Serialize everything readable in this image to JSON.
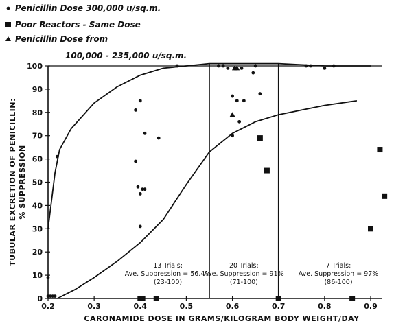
{
  "chart_data": {
    "type": "scatter",
    "legend": {
      "placement": "top-left",
      "entries": [
        {
          "marker": "circle",
          "label": "Penicillin Dose 300,000 u/sq.m."
        },
        {
          "marker": "square",
          "label": "Poor Reactors - Same Dose"
        },
        {
          "marker": "triangle",
          "label": "Penicillin Dose from"
        },
        {
          "marker": "none",
          "label": "100,000 - 235,000 u/sq.m."
        }
      ]
    },
    "xlabel": "CARONAMIDE DOSE IN GRAMS/KILOGRAM BODY WEIGHT/DAY",
    "ylabel_lines": [
      "TUBULAR EXCRETION OF PENICILLIN:",
      "% SUPPRESSION"
    ],
    "xlim": [
      0.2,
      0.95
    ],
    "ylim": [
      0,
      100
    ],
    "x_ticks": [
      "0.2",
      "0.3",
      "0.4",
      "0.5",
      "0.6",
      "0.7",
      "0.8",
      "0.9"
    ],
    "x_tick_values": [
      0.2,
      0.3,
      0.4,
      0.5,
      0.6,
      0.7,
      0.8,
      0.9
    ],
    "y_ticks": [
      "0",
      "10",
      "20",
      "30",
      "40",
      "50",
      "60",
      "70",
      "80",
      "90",
      "100"
    ],
    "y_tick_values": [
      0,
      10,
      20,
      30,
      40,
      50,
      60,
      70,
      80,
      90,
      100
    ],
    "grid": false,
    "dividers_x": [
      0.55,
      0.7
    ],
    "annotations": [
      {
        "x": 0.46,
        "lines": [
          "13 Trials:",
          "Ave. Suppression = 56.4%",
          "(23-100)"
        ]
      },
      {
        "x": 0.625,
        "lines": [
          "20 Trials:",
          "Ave. Suppression = 91%",
          "(71-100)"
        ]
      },
      {
        "x": 0.83,
        "lines": [
          "7 Trials:",
          "Ave. Suppression = 97%",
          "(86-100)"
        ]
      }
    ],
    "series": [
      {
        "name": "Penicillin Dose 300,000 u/sq.m.",
        "marker": "circle",
        "x": [
          0.2,
          0.2,
          0.205,
          0.21,
          0.215,
          0.22,
          0.39,
          0.39,
          0.395,
          0.4,
          0.4,
          0.4,
          0.405,
          0.41,
          0.41,
          0.44,
          0.48,
          0.57,
          0.58,
          0.59,
          0.6,
          0.6,
          0.605,
          0.61,
          0.615,
          0.62,
          0.625,
          0.645,
          0.65,
          0.66,
          0.76,
          0.77,
          0.8,
          0.82
        ],
        "y": [
          9,
          1,
          1,
          1,
          1,
          61,
          81,
          59,
          48,
          85,
          45,
          31,
          47,
          71,
          47,
          69,
          100,
          100,
          100,
          99,
          70,
          87,
          99,
          85,
          76,
          99,
          85,
          97,
          100,
          88,
          100,
          100,
          99,
          100
        ]
      },
      {
        "name": "Poor Reactors - Same Dose",
        "marker": "square",
        "x": [
          0.4,
          0.405,
          0.435,
          0.66,
          0.675,
          0.7,
          0.86,
          0.9,
          0.92,
          0.93
        ],
        "y": [
          0,
          0,
          0,
          69,
          55,
          0,
          0,
          30,
          64,
          44
        ]
      },
      {
        "name": "Penicillin Dose from",
        "marker": "triangle",
        "x": [
          0.6,
          0.605,
          0.61
        ],
        "y": [
          79,
          99,
          99
        ]
      }
    ],
    "curves": [
      {
        "x": [
          0.2,
          0.215,
          0.225,
          0.25,
          0.3,
          0.35,
          0.4,
          0.45,
          0.5,
          0.55,
          0.6,
          0.7,
          0.8,
          0.9
        ],
        "y": [
          30,
          54,
          64,
          73,
          84,
          91,
          96,
          99,
          100,
          101,
          101,
          101,
          100,
          100
        ]
      },
      {
        "x": [
          0.22,
          0.26,
          0.3,
          0.35,
          0.4,
          0.45,
          0.5,
          0.55,
          0.6,
          0.65,
          0.7,
          0.75,
          0.8,
          0.87
        ],
        "y": [
          0,
          4,
          9,
          16,
          24,
          34,
          49,
          63,
          71,
          76,
          79,
          81,
          83,
          85
        ]
      }
    ]
  }
}
